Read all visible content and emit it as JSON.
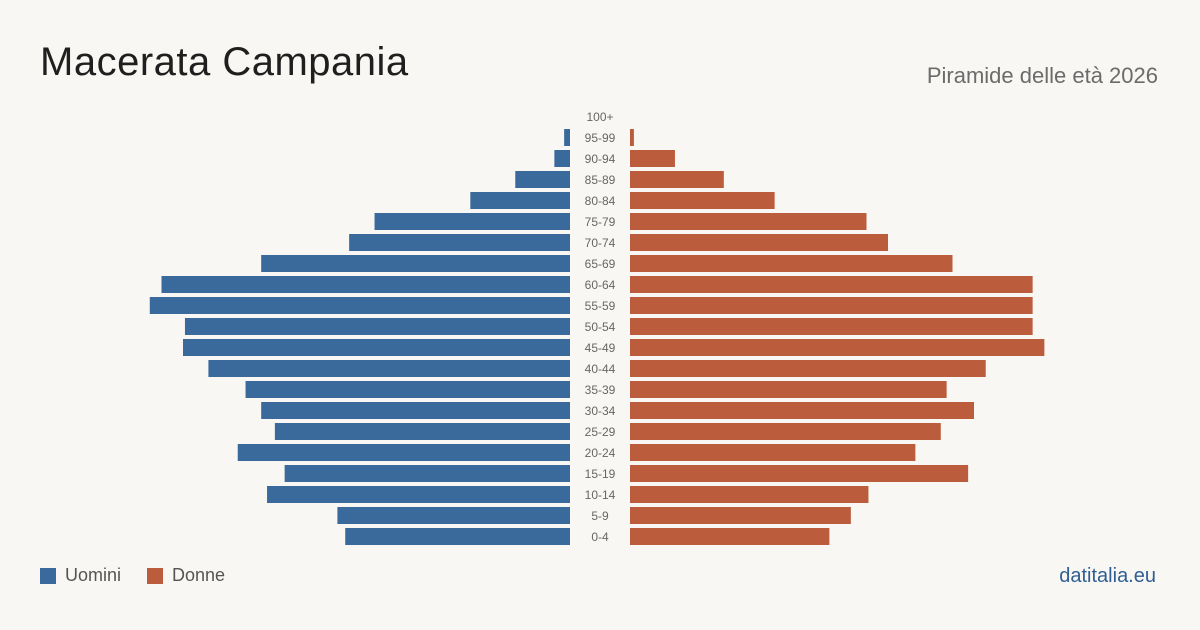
{
  "header": {
    "title": "Macerata Campania",
    "subtitle": "Piramide delle età 2026"
  },
  "legend": {
    "men_label": "Uomini",
    "women_label": "Donne"
  },
  "footer": {
    "source": "datitalia.eu"
  },
  "colors": {
    "men": "#3a6a9c",
    "women": "#bb5d3d",
    "background": "#f9f7f3",
    "age_label": "#666666"
  },
  "chart_data": {
    "type": "bar",
    "orientation": "horizontal-pyramid",
    "categories": [
      "100+",
      "95-99",
      "90-94",
      "85-89",
      "80-84",
      "75-79",
      "70-74",
      "65-69",
      "60-64",
      "55-59",
      "50-54",
      "45-49",
      "40-44",
      "35-39",
      "30-34",
      "25-29",
      "20-24",
      "15-19",
      "10-14",
      "5-9",
      "0-4"
    ],
    "series": [
      {
        "name": "Uomini",
        "side": "left",
        "values": [
          0,
          3,
          8,
          28,
          51,
          100,
          113,
          158,
          209,
          215,
          197,
          198,
          185,
          166,
          158,
          151,
          170,
          146,
          155,
          119,
          115
        ]
      },
      {
        "name": "Donne",
        "side": "right",
        "values": [
          0,
          2,
          23,
          48,
          74,
          121,
          132,
          165,
          206,
          206,
          206,
          212,
          182,
          162,
          176,
          159,
          146,
          173,
          122,
          113,
          102
        ]
      }
    ],
    "xlim": [
      0,
      220
    ],
    "grid": false,
    "legend_position": "bottom-left"
  }
}
